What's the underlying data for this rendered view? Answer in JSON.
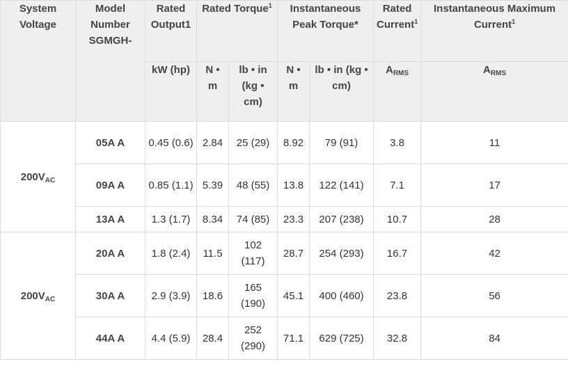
{
  "headers": {
    "system_voltage": "System Voltage",
    "model_number": "Model Number SGMGH-",
    "rated_output": "Rated Output1",
    "rated_torque": "Rated Torque",
    "rated_torque_sup": "1",
    "inst_peak_torque": "Instantaneous Peak Torque*",
    "rated_current": "Rated Current",
    "rated_current_sup": "1",
    "inst_max_current": "Instantaneous Maximum Current",
    "inst_max_current_sup": "1"
  },
  "units": {
    "output": "kW (hp)",
    "torque_nm": "N • m",
    "torque_lbin": "lb • in (kg • cm)",
    "peak_nm": "N • m",
    "peak_lbin": "lb • in (kg • cm)",
    "rated_current_base": "A",
    "rated_current_sub": "RMS",
    "max_current_base": "A",
    "max_current_sub": "RMS"
  },
  "groups": [
    {
      "voltage_base": "200V",
      "voltage_sub": "AC"
    },
    {
      "voltage_base": "200V",
      "voltage_sub": "AC"
    }
  ],
  "rows": [
    {
      "model": "05A  A",
      "output": "0.45 (0.6)",
      "torque_nm": "2.84",
      "torque_lbin": "25 (29)",
      "peak_nm": "8.92",
      "peak_lbin": "79 (91)",
      "rated_current": "3.8",
      "max_current": "11"
    },
    {
      "model": "09A  A",
      "output": "0.85 (1.1)",
      "torque_nm": "5.39",
      "torque_lbin": "48 (55)",
      "peak_nm": "13.8",
      "peak_lbin": "122 (141)",
      "rated_current": "7.1",
      "max_current": "17"
    },
    {
      "model": "13A  A",
      "output": "1.3 (1.7)",
      "torque_nm": "8.34",
      "torque_lbin": "74 (85)",
      "peak_nm": "23.3",
      "peak_lbin": "207 (238)",
      "rated_current": "10.7",
      "max_current": "28"
    },
    {
      "model": "20A  A",
      "output": "1.8 (2.4)",
      "torque_nm": "11.5",
      "torque_lbin": "102 (117)",
      "peak_nm": "28.7",
      "peak_lbin": "254 (293)",
      "rated_current": "16.7",
      "max_current": "42"
    },
    {
      "model": "30A  A",
      "output": "2.9 (3.9)",
      "torque_nm": "18.6",
      "torque_lbin": "165 (190)",
      "peak_nm": "45.1",
      "peak_lbin": "400 (460)",
      "rated_current": "23.8",
      "max_current": "56"
    },
    {
      "model": "44A  A",
      "output": "4.4 (5.9)",
      "torque_nm": "28.4",
      "torque_lbin": "252 (290)",
      "peak_nm": "71.1",
      "peak_lbin": "629 (725)",
      "rated_current": "32.8",
      "max_current": "84"
    }
  ]
}
